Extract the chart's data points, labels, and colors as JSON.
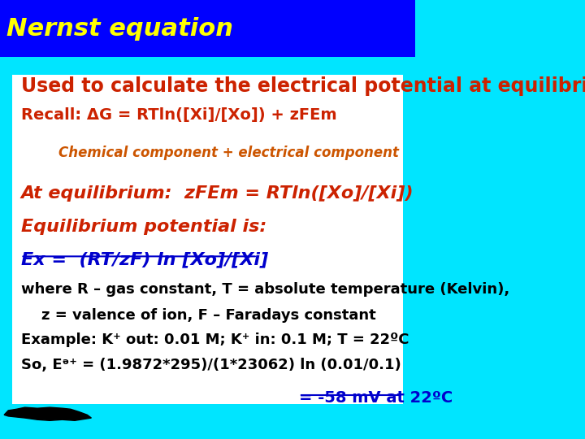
{
  "title": "Nernst equation",
  "title_color": "#FFFF00",
  "title_bg": "#0000FF",
  "title_fontsize": 22,
  "bottom_bg": "#00E5FF",
  "subtitle": "Used to calculate the electrical potential at equilibrium",
  "subtitle_color": "#CC2200",
  "subtitle_fontsize": 17,
  "recall_line": "Recall: ΔG = RTln([Xi]/[Xo]) + zFEm",
  "recall_color": "#CC2200",
  "recall_fontsize": 14,
  "chemical_line": "Chemical component + electrical component",
  "chemical_color": "#CC5500",
  "chemical_fontsize": 12,
  "eq1_line": "At equilibrium:  zFEm = RTln([Xo]/[Xi])",
  "eq1_color": "#CC2200",
  "eq1_fontsize": 16,
  "eq2_line": "Equilibrium potential is:",
  "eq2_color": "#CC2200",
  "eq2_fontsize": 16,
  "eq3_line": "Ex =  (RT/zF) ln [Xo]/[Xi]",
  "eq3_color": "#0000CC",
  "eq3_fontsize": 16,
  "where1": "where R – gas constant, T = absolute temperature (Kelvin),",
  "where2": "    z = valence of ion, F – Faradays constant",
  "example": "Example: K⁺ out: 0.01 M; K⁺ in: 0.1 M; T = 22ºC",
  "so_line": "So, Eᵊ⁺ = (1.9872*295)/(1*23062) ln (0.01/0.1)",
  "result_line": "= -58 mV at 22ºC",
  "black_fontsize": 13,
  "result_color": "#0000CC",
  "result_fontsize": 14
}
